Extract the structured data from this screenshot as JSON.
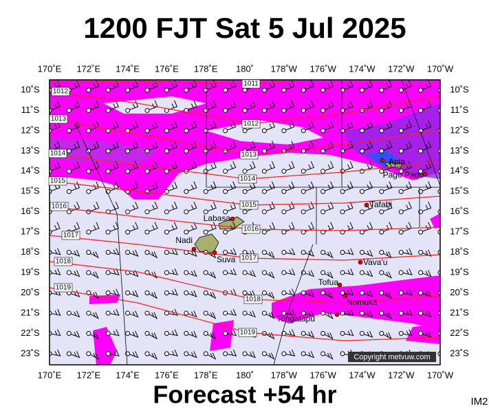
{
  "header": {
    "title": "1200 FJT Sat 5 Jul 2025"
  },
  "map": {
    "longitudes": [
      "170˚E",
      "172˚E",
      "174˚E",
      "176˚E",
      "178˚E",
      "180˚",
      "178˚W",
      "176˚W",
      "174˚W",
      "172˚W",
      "170˚W"
    ],
    "latitudes": [
      "10˚S",
      "11˚S",
      "12˚S",
      "13˚S",
      "14˚S",
      "15˚S",
      "16˚S",
      "17˚S",
      "18˚S",
      "19˚S",
      "20˚S",
      "21˚S",
      "22˚S",
      "23˚S"
    ],
    "isobars": [
      "1011",
      "1012",
      "1013",
      "1014",
      "1015",
      "1016",
      "1017",
      "1018",
      "1019"
    ],
    "edge_isobars": [
      "1012",
      "1013",
      "1014",
      "1015",
      "1016",
      "1017",
      "1018",
      "1019"
    ],
    "places": [
      "Apia",
      "Pago Pago",
      "Tafahi",
      "Labasa",
      "Nadi",
      "Suva",
      "Vava'u",
      "Tofua",
      "Nomuka",
      "Tongatapu"
    ],
    "copyright": "Copyright metvuw.com"
  },
  "footer": {
    "forecast": "Forecast +54 hr",
    "code": "IM2"
  }
}
